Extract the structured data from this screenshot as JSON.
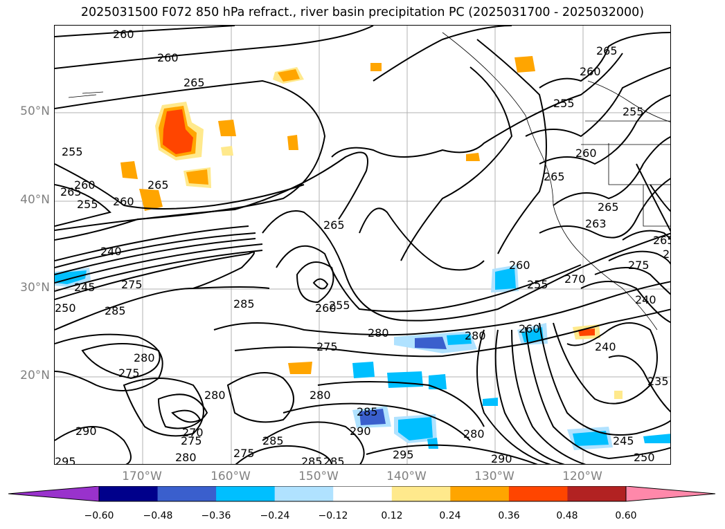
{
  "title": "2025031500 F072 850 hPa refract., river basin precipitation PC (2025031700 - 2025032000)",
  "lat_labels": [
    "50°N",
    "40°N",
    "30°N",
    "20°N"
  ],
  "lon_labels": [
    "170°W",
    "160°W",
    "150°W",
    "140°W",
    "130°W",
    "120°W"
  ],
  "colorbar": {
    "ticks": [
      "−0.60",
      "−0.48",
      "−0.36",
      "−0.24",
      "−0.12",
      "0.12",
      "0.24",
      "0.36",
      "0.48",
      "0.60"
    ],
    "colors": [
      "#9932cc",
      "#00008b",
      "#3a5fcd",
      "#00bfff",
      "#b0e2ff",
      "#ffffff",
      "#ffe98c",
      "#ffa500",
      "#ff4500",
      "#b22222",
      "#ff88aa"
    ]
  },
  "contour_labels": [
    "260",
    "260",
    "265",
    "265",
    "260",
    "255",
    "255",
    "260",
    "265",
    "255",
    "260",
    "265",
    "260",
    "255",
    "265",
    "265",
    "263",
    "240",
    "245",
    "250",
    "275",
    "285",
    "285",
    "265",
    "255",
    "260",
    "280",
    "275",
    "280",
    "280",
    "275",
    "280",
    "280",
    "270",
    "275",
    "280",
    "275",
    "285",
    "285",
    "290",
    "295",
    "285",
    "285",
    "290",
    "280",
    "290",
    "295",
    "260",
    "255",
    "270",
    "240",
    "245",
    "240",
    "235",
    "260",
    "275",
    "255",
    "265",
    "250"
  ]
}
